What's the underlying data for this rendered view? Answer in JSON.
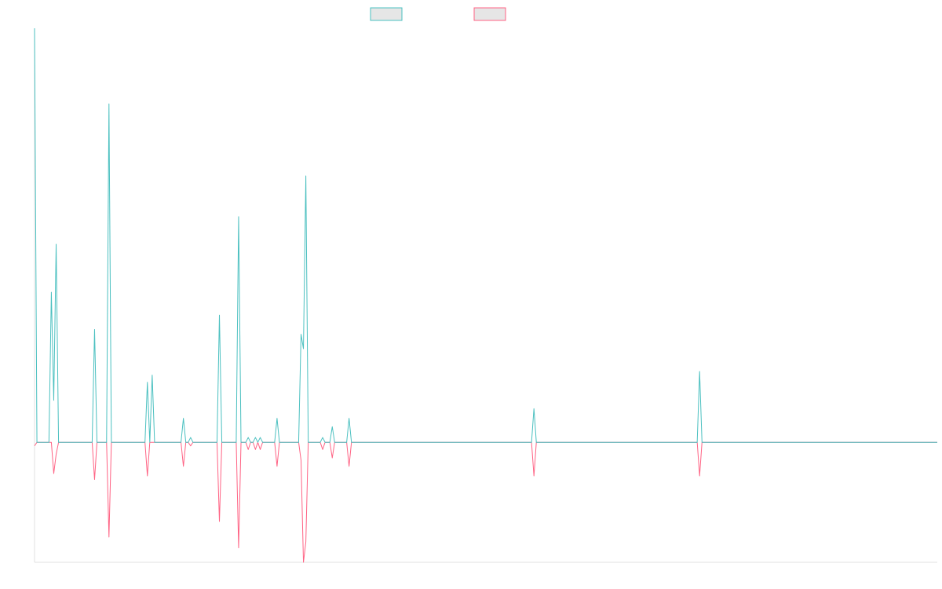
{
  "colors": {
    "series_a": "#4bc0c0",
    "series_b": "#ff6384",
    "legend_fill": "#e6e6e6",
    "axis": "#e0e0e0"
  },
  "chart_data": {
    "type": "line",
    "title": "",
    "xlabel": "",
    "ylabel": "",
    "grid": false,
    "legend_position": "top-center",
    "ylim": [
      -100,
      345
    ],
    "x": [
      0,
      1,
      2,
      3,
      4,
      5,
      6,
      7,
      8,
      9,
      10,
      11,
      12,
      13,
      14,
      15,
      16,
      17,
      18,
      19,
      20,
      21,
      22,
      23,
      24,
      25,
      26,
      27,
      28,
      29,
      30,
      31,
      32,
      33,
      34,
      35,
      36,
      37,
      38,
      39,
      40,
      41,
      42,
      43,
      44,
      45,
      46,
      47,
      48,
      49,
      50,
      51,
      52,
      53,
      54,
      55,
      56,
      57,
      58,
      59,
      60,
      61,
      62,
      63,
      64,
      65,
      66,
      67,
      67.5,
      68,
      68.5,
      69,
      69.5,
      70,
      70.5,
      71,
      71.5,
      72,
      72.5,
      73,
      74,
      75,
      76,
      77,
      78,
      79,
      80,
      81,
      82,
      83,
      84,
      85,
      86,
      87,
      88,
      89,
      90,
      91,
      92,
      93,
      94,
      95,
      96,
      97,
      98,
      99,
      100,
      101,
      102,
      103,
      104,
      105,
      106,
      107,
      108,
      109,
      110,
      111,
      112,
      113,
      114,
      115,
      116,
      117,
      118,
      119,
      120,
      121,
      122,
      123,
      124,
      125,
      126,
      127,
      128,
      129,
      130,
      131,
      132,
      133,
      134,
      135,
      136,
      137,
      138,
      139,
      140,
      141,
      142,
      143,
      144,
      145,
      146,
      147,
      148,
      149,
      150,
      151,
      152,
      153,
      154,
      155,
      156,
      157,
      158,
      159,
      160,
      161,
      162,
      163,
      164,
      165,
      166,
      167,
      168,
      169,
      170,
      171,
      172,
      173,
      174,
      175,
      176,
      177,
      178,
      179,
      180,
      181,
      182,
      183,
      184,
      185,
      186,
      187,
      188,
      189,
      190,
      191,
      192,
      193,
      194,
      195,
      196,
      197,
      198,
      199,
      200,
      201,
      202,
      203,
      204,
      205,
      206,
      207,
      208,
      209,
      210,
      211,
      212,
      213,
      214,
      215,
      216,
      217,
      218,
      219,
      220,
      221,
      222,
      223,
      224,
      225,
      226,
      227,
      228,
      229,
      230,
      231,
      232,
      233,
      234,
      235,
      236,
      237,
      238,
      239,
      240,
      241,
      242,
      243,
      244,
      245,
      246,
      247,
      248,
      249,
      250,
      251,
      252,
      253,
      254,
      255,
      256,
      257,
      258,
      259,
      260,
      261,
      262,
      263,
      264,
      265,
      266,
      267,
      268,
      269,
      270,
      271,
      272,
      273,
      274,
      275,
      276,
      277,
      278,
      279,
      280,
      281,
      282,
      283,
      284,
      285,
      286,
      287,
      288,
      289,
      290,
      291,
      292,
      293,
      294,
      295,
      296,
      297,
      298,
      299,
      300,
      301,
      302,
      303,
      304,
      305,
      306,
      307,
      308,
      309,
      310,
      311,
      312,
      313,
      314,
      315,
      316,
      317,
      318,
      319,
      320,
      321,
      322,
      323,
      324,
      325,
      326,
      327,
      328,
      329,
      330,
      331,
      332,
      333,
      334,
      335,
      336,
      337,
      338,
      339,
      340,
      341,
      342,
      343,
      344,
      345,
      346,
      347,
      348,
      349,
      350,
      351,
      352,
      353,
      354,
      355,
      356,
      357,
      358,
      359,
      360,
      361,
      362,
      363,
      364,
      365,
      366,
      367,
      368,
      369,
      370,
      371,
      372,
      373,
      374,
      375,
      376
    ],
    "series": [
      {
        "peaks": [
          [
            0,
            345
          ],
          [
            7,
            125
          ],
          [
            8,
            35
          ],
          [
            9,
            165
          ],
          [
            25,
            94
          ],
          [
            31,
            282
          ],
          [
            47,
            50
          ],
          [
            49,
            56
          ],
          [
            62,
            20
          ],
          [
            65,
            4
          ],
          [
            77,
            106
          ],
          [
            85,
            188
          ],
          [
            89,
            4
          ],
          [
            92,
            4
          ],
          [
            94,
            4
          ],
          [
            101,
            20
          ],
          [
            111,
            90
          ],
          [
            112,
            78
          ],
          [
            113,
            222
          ],
          [
            120,
            4
          ],
          [
            124,
            13
          ],
          [
            131,
            20
          ],
          [
            208,
            28
          ],
          [
            277,
            59
          ]
        ],
        "baseline": 0
      },
      {
        "troughs": [
          [
            0,
            -3
          ],
          [
            8,
            -26
          ],
          [
            9,
            -10
          ],
          [
            25,
            -31
          ],
          [
            31,
            -79
          ],
          [
            47,
            -28
          ],
          [
            62,
            -20
          ],
          [
            65,
            -3
          ],
          [
            77,
            -66
          ],
          [
            85,
            -88
          ],
          [
            89,
            -6
          ],
          [
            92,
            -6
          ],
          [
            94,
            -6
          ],
          [
            101,
            -20
          ],
          [
            111,
            -15
          ],
          [
            112,
            -100
          ],
          [
            113,
            -83
          ],
          [
            120,
            -6
          ],
          [
            124,
            -13
          ],
          [
            131,
            -20
          ],
          [
            208,
            -28
          ],
          [
            277,
            -28
          ]
        ],
        "baseline": 0
      }
    ]
  }
}
